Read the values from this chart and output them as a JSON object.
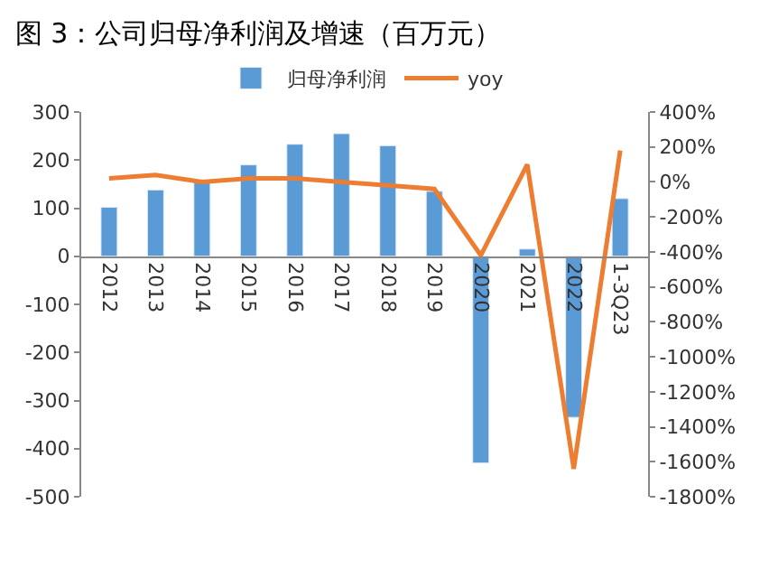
{
  "chart_data": {
    "type": "bar",
    "title": "图 3：公司归母净利润及增速（百万元）",
    "categories": [
      "2012",
      "2013",
      "2014",
      "2015",
      "2016",
      "2017",
      "2018",
      "2019",
      "2020",
      "2021",
      "2022",
      "1-3Q23"
    ],
    "series": [
      {
        "name": "归母净利润",
        "color": "#5b9bd5",
        "values": [
          102,
          138,
          156,
          190,
          233,
          255,
          230,
          135,
          -430,
          15,
          -335,
          120
        ]
      },
      {
        "name": "yoy",
        "type": "line",
        "axis": "y2",
        "color": "#ed7d31",
        "values": [
          20,
          40,
          0,
          20,
          20,
          0,
          -20,
          -40,
          -420,
          100,
          -1640,
          180
        ]
      }
    ],
    "ylim": [
      -500,
      300
    ],
    "yticks": [
      -500,
      -400,
      -300,
      -200,
      -100,
      0,
      100,
      200,
      300
    ],
    "y2lim": [
      -1800,
      400
    ],
    "y2ticks": [
      {
        "value": -1800,
        "label": "-1800%"
      },
      {
        "value": -1600,
        "label": "-1600%"
      },
      {
        "value": -1400,
        "label": "-1400%"
      },
      {
        "value": -1200,
        "label": "-1200%"
      },
      {
        "value": -1000,
        "label": "-1000%"
      },
      {
        "value": -800,
        "label": "-800%"
      },
      {
        "value": -600,
        "label": "-600%"
      },
      {
        "value": -400,
        "label": "-400%"
      },
      {
        "value": -200,
        "label": "-200%"
      },
      {
        "value": 0,
        "label": "0%"
      },
      {
        "value": 200,
        "label": "200%"
      },
      {
        "value": 400,
        "label": "400%"
      }
    ],
    "legend": "top",
    "marker": "none",
    "line_style": "solid"
  }
}
